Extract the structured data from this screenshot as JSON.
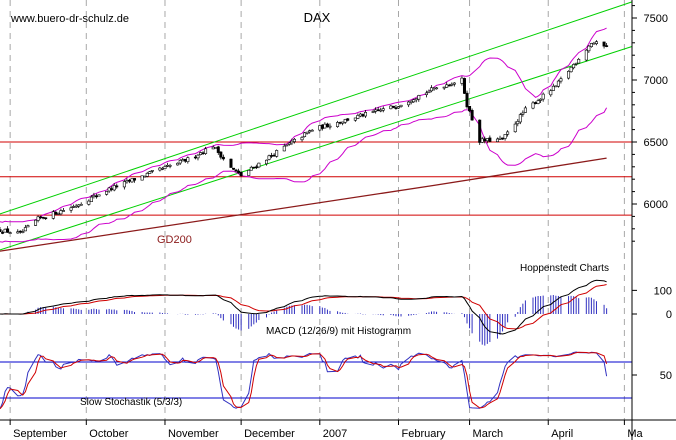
{
  "chart_data": [
    {
      "type": "candlestick",
      "title": "DAX",
      "source_label": "www.buero-dr-schulz.de",
      "credit": "Hoppenstedt Charts",
      "x_axis": {
        "months": [
          {
            "label": "September",
            "start": "2006-09-01"
          },
          {
            "label": "October",
            "start": "2006-10-01"
          },
          {
            "label": "November",
            "start": "2006-11-01"
          },
          {
            "label": "December",
            "start": "2006-12-01"
          },
          {
            "label": "2007",
            "start": "2007-01-01"
          },
          {
            "label": "February",
            "start": "2007-02-01"
          },
          {
            "label": "March",
            "start": "2007-03-01"
          },
          {
            "label": "April",
            "start": "2007-04-01"
          },
          {
            "label": "Ma",
            "start": "2007-05-01"
          }
        ],
        "range": [
          "2006-08-28",
          "2007-05-04"
        ]
      },
      "y_axis": {
        "ticks": [
          6000,
          6500,
          7000,
          7500
        ],
        "range": [
          5600,
          7650
        ]
      },
      "price_anchors": [
        {
          "date": "2006-08-28",
          "close": 5790
        },
        {
          "date": "2006-09-05",
          "close": 5760
        },
        {
          "date": "2006-09-12",
          "close": 5880
        },
        {
          "date": "2006-09-26",
          "close": 5980
        },
        {
          "date": "2006-10-10",
          "close": 6120
        },
        {
          "date": "2006-10-25",
          "close": 6240
        },
        {
          "date": "2006-11-10",
          "close": 6360
        },
        {
          "date": "2006-11-20",
          "close": 6470
        },
        {
          "date": "2006-11-27",
          "close": 6290
        },
        {
          "date": "2006-12-01",
          "close": 6230
        },
        {
          "date": "2006-12-12",
          "close": 6380
        },
        {
          "date": "2006-12-29",
          "close": 6600
        },
        {
          "date": "2007-01-15",
          "close": 6700
        },
        {
          "date": "2007-01-31",
          "close": 6790
        },
        {
          "date": "2007-02-16",
          "close": 6940
        },
        {
          "date": "2007-02-26",
          "close": 7000
        },
        {
          "date": "2007-02-28",
          "close": 6800
        },
        {
          "date": "2007-03-05",
          "close": 6510
        },
        {
          "date": "2007-03-14",
          "close": 6520
        },
        {
          "date": "2007-03-23",
          "close": 6760
        },
        {
          "date": "2007-04-04",
          "close": 6950
        },
        {
          "date": "2007-04-18",
          "close": 7300
        },
        {
          "date": "2007-04-24",
          "close": 7280
        }
      ],
      "series": [
        {
          "name": "GD200",
          "color": "#8b1a1a",
          "points": [
            {
              "date": "2006-08-28",
              "value": 5620
            },
            {
              "date": "2007-02-15",
              "value": 6150
            },
            {
              "date": "2007-04-24",
              "value": 6370
            }
          ]
        },
        {
          "color": "#00d000",
          "role": "upper trend channel",
          "points": [
            {
              "date": "2006-08-28",
              "value": 5920
            },
            {
              "date": "2007-05-04",
              "value": 7630
            }
          ]
        },
        {
          "color": "#00d000",
          "role": "lower trend channel",
          "points": [
            {
              "date": "2006-08-28",
              "value": 5630
            },
            {
              "date": "2007-05-04",
              "value": 7270
            }
          ]
        },
        {
          "color": "#cc00cc",
          "role": "upper Bollinger band"
        },
        {
          "color": "#cc00cc",
          "role": "lower Bollinger band"
        }
      ],
      "horizontal_lines": [
        {
          "value": 6500,
          "color": "#d00000"
        },
        {
          "value": 6220,
          "color": "#d00000"
        },
        {
          "value": 5910,
          "color": "#d00000"
        }
      ]
    },
    {
      "type": "macd",
      "label": "MACD (12/26/9) mit Histogramm",
      "y_ticks": [
        100,
        0
      ],
      "series": [
        {
          "color": "#000000",
          "role": "MACD"
        },
        {
          "color": "#d00000",
          "role": "signal"
        },
        {
          "color": "#3030c0",
          "role": "histogram"
        }
      ]
    },
    {
      "type": "line",
      "label": "Slow Stochastik (5/3/3)",
      "y_ticks": [
        50
      ],
      "y_range": [
        0,
        100
      ],
      "reference_lines": [
        80,
        20
      ],
      "series": [
        {
          "color": "#3030c0",
          "role": "%K"
        },
        {
          "color": "#d00000",
          "role": "%D"
        }
      ]
    }
  ]
}
